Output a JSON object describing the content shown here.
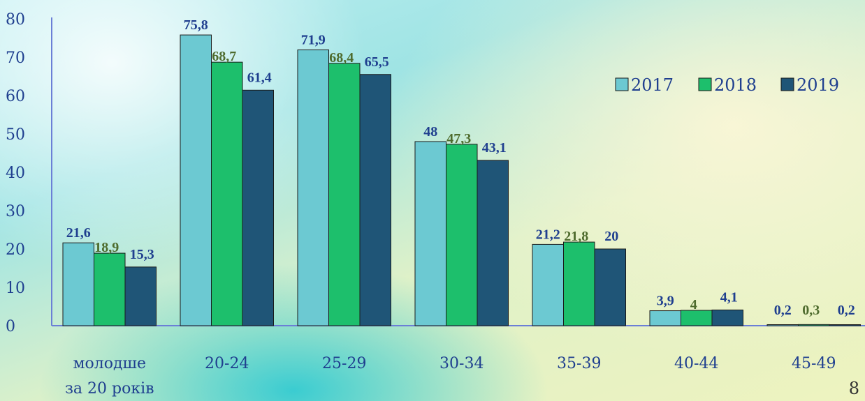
{
  "chart_data": {
    "type": "bar",
    "categories": [
      "молодше\nза 20 років",
      "20-24",
      "25-29",
      "30-34",
      "35-39",
      "40-44",
      "45-49"
    ],
    "series": [
      {
        "name": "2017",
        "values": [
          21.6,
          75.8,
          71.9,
          48,
          21.2,
          3.9,
          0.2
        ],
        "labels": [
          "21,6",
          "75,8",
          "71,9",
          "48",
          "21,2",
          "3,9",
          "0,2"
        ]
      },
      {
        "name": "2018",
        "values": [
          18.9,
          68.7,
          68.4,
          47.3,
          21.8,
          4,
          0.3
        ],
        "labels": [
          "18,9",
          "68,7",
          "68,4",
          "47,3",
          "21,8",
          "4",
          "0,3"
        ]
      },
      {
        "name": "2019",
        "values": [
          15.3,
          61.4,
          65.5,
          43.1,
          20,
          4.1,
          0.2
        ],
        "labels": [
          "15,3",
          "61,4",
          "65,5",
          "43,1",
          "20",
          "4,1",
          "0,2"
        ]
      }
    ],
    "yticks": [
      "0",
      "10",
      "20",
      "30",
      "40",
      "50",
      "60",
      "70",
      "80"
    ],
    "ylim": [
      0,
      80
    ],
    "legend_position": "top-right",
    "grid": false
  },
  "colors": {
    "series": [
      "#6cc9d2",
      "#1dbf6c",
      "#1f5577"
    ],
    "label_colors": [
      "#1f3f8f",
      "#4e6b2d",
      "#1f3f8f"
    ],
    "axis": "#6b7fd6"
  },
  "page_number": "8"
}
